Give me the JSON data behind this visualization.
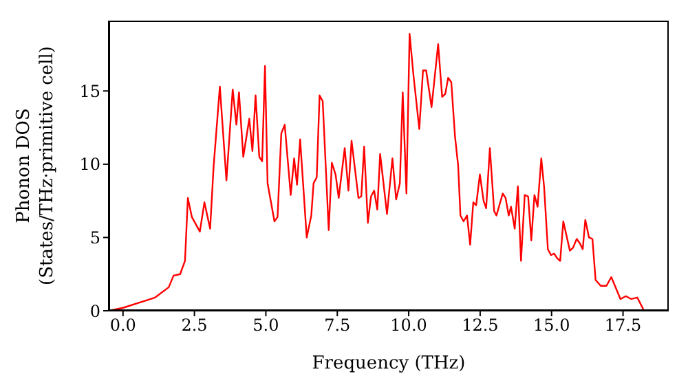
{
  "chart_data": {
    "type": "line",
    "xlabel": "Frequency (THz)",
    "ylabel": "Phonon DOS\n(States/THz·primitive cell)",
    "xlim": [
      -0.5,
      19.1
    ],
    "ylim": [
      0,
      19.8
    ],
    "xticks": [
      {
        "value": 0,
        "label": "0.0"
      },
      {
        "value": 2.5,
        "label": "2.5"
      },
      {
        "value": 5,
        "label": "5.0"
      },
      {
        "value": 7.5,
        "label": "7.5"
      },
      {
        "value": 10,
        "label": "10.0"
      },
      {
        "value": 12.5,
        "label": "12.5"
      },
      {
        "value": 15,
        "label": "15.0"
      },
      {
        "value": 17.5,
        "label": "17.5"
      }
    ],
    "yticks": [
      0,
      5,
      10,
      15
    ],
    "grid": false,
    "legend": false,
    "marker": "none",
    "line_style": "solid",
    "x": [
      -0.5,
      0,
      0.8,
      1.12,
      1.6,
      1.77,
      2.0,
      2.17,
      2.27,
      2.41,
      2.69,
      2.85,
      3.05,
      3.17,
      3.39,
      3.62,
      3.84,
      3.97,
      4.06,
      4.21,
      4.42,
      4.53,
      4.64,
      4.77,
      4.87,
      4.97,
      5.06,
      5.3,
      5.41,
      5.54,
      5.66,
      5.87,
      5.99,
      6.09,
      6.2,
      6.43,
      6.59,
      6.67,
      6.78,
      6.88,
      6.99,
      7.2,
      7.31,
      7.44,
      7.55,
      7.76,
      7.89,
      8.0,
      8.24,
      8.34,
      8.44,
      8.57,
      8.68,
      8.79,
      8.9,
      9.0,
      9.24,
      9.43,
      9.56,
      9.69,
      9.79,
      9.92,
      10.03,
      10.17,
      10.37,
      10.5,
      10.61,
      10.8,
      11.03,
      11.17,
      11.28,
      11.38,
      11.49,
      11.62,
      11.73,
      11.81,
      11.92,
      12.04,
      12.15,
      12.26,
      12.36,
      12.49,
      12.62,
      12.71,
      12.84,
      12.99,
      13.07,
      13.29,
      13.39,
      13.5,
      13.58,
      13.71,
      13.82,
      13.93,
      14.06,
      14.18,
      14.29,
      14.4,
      14.51,
      14.64,
      14.74,
      14.87,
      14.98,
      15.09,
      15.19,
      15.3,
      15.41,
      15.64,
      15.75,
      15.88,
      15.99,
      16.09,
      16.18,
      16.31,
      16.43,
      16.54,
      16.72,
      16.92,
      17.09,
      17.41,
      17.6,
      17.79,
      18.0,
      18.21
    ],
    "series": [
      {
        "color": "#ff0000",
        "values": [
          0,
          0.2,
          0.7,
          0.9,
          1.6,
          2.4,
          2.5,
          3.4,
          7.7,
          6.4,
          5.4,
          7.4,
          5.6,
          9.8,
          15.3,
          8.9,
          15.1,
          12.7,
          14.9,
          10.5,
          13.1,
          10.9,
          14.7,
          10.5,
          10.2,
          16.7,
          8.7,
          6.1,
          6.4,
          12.1,
          12.7,
          7.9,
          10.4,
          8.6,
          11.7,
          5.0,
          6.5,
          8.7,
          9.1,
          14.7,
          14.3,
          5.5,
          10.1,
          9.3,
          7.7,
          11.1,
          8.2,
          11.6,
          7.7,
          7.8,
          11.2,
          6.0,
          7.8,
          8.2,
          6.9,
          10.7,
          6.6,
          10.4,
          7.6,
          8.7,
          14.9,
          8.0,
          18.9,
          16.0,
          12.4,
          16.4,
          16.4,
          13.9,
          18.2,
          14.6,
          14.8,
          15.9,
          15.6,
          11.9,
          9.9,
          6.5,
          6.1,
          6.5,
          4.5,
          7.4,
          7.2,
          9.3,
          7.5,
          7.0,
          11.1,
          6.8,
          6.5,
          8.0,
          7.7,
          6.5,
          7.1,
          5.6,
          8.5,
          3.4,
          7.9,
          7.8,
          4.8,
          7.9,
          7.1,
          10.4,
          8.4,
          4.2,
          3.8,
          3.9,
          3.6,
          3.4,
          6.1,
          4.1,
          4.3,
          4.9,
          4.6,
          4.2,
          6.2,
          5.0,
          4.9,
          2.1,
          1.7,
          1.7,
          2.3,
          0.8,
          1.0,
          0.8,
          0.9,
          0.1
        ]
      }
    ]
  }
}
